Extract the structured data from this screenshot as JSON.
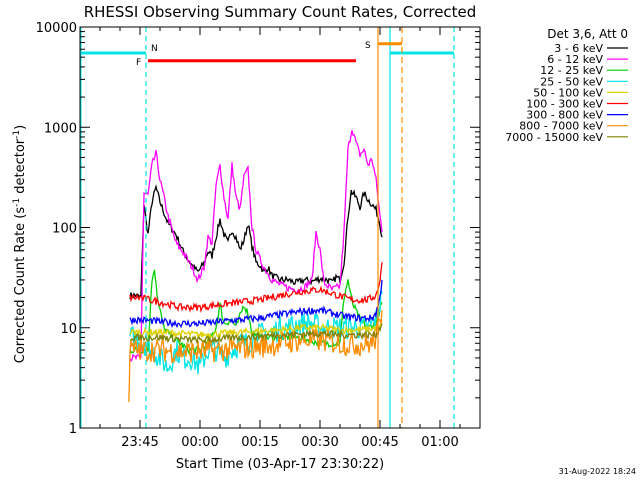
{
  "chart_data": {
    "type": "line",
    "title": "RHESSI Observing Summary Count Rates, Corrected",
    "xlabel": "Start Time (03-Apr-17 23:30:22)",
    "ylabel": "Corrected Count Rate (s",
    "ylabel_sup": "-1",
    "ylabel_mid": " detector",
    "ylabel_sup2": "-1",
    "ylabel_end": ")",
    "yscale": "log",
    "ylim": [
      1,
      10000
    ],
    "y_ticks": [
      {
        "v": 1,
        "label": "1"
      },
      {
        "v": 10,
        "label": "10"
      },
      {
        "v": 100,
        "label": "100"
      },
      {
        "v": 1000,
        "label": "1000"
      },
      {
        "v": 10000,
        "label": "10000"
      }
    ],
    "xlim_minutes": [
      0,
      100
    ],
    "x_ticks": [
      {
        "m": 15,
        "label": "23:45"
      },
      {
        "m": 30,
        "label": "00:00"
      },
      {
        "m": 45,
        "label": "00:15"
      },
      {
        "m": 60,
        "label": "00:30"
      },
      {
        "m": 75,
        "label": "00:45"
      },
      {
        "m": 90,
        "label": "01:00"
      }
    ],
    "legend_title": "Det 3,6, Att 0",
    "legend_placement": "top-right outside",
    "series": [
      {
        "name": "3 - 6 keV",
        "color": "#000000",
        "points": [
          [
            12.5,
            21
          ],
          [
            14,
            21
          ],
          [
            15.2,
            20
          ],
          [
            16,
            170
          ],
          [
            17,
            85
          ],
          [
            18,
            180
          ],
          [
            19,
            250
          ],
          [
            20,
            180
          ],
          [
            22,
            110
          ],
          [
            24,
            85
          ],
          [
            26,
            55
          ],
          [
            28,
            42
          ],
          [
            29.5,
            36
          ],
          [
            31,
            44
          ],
          [
            32,
            58
          ],
          [
            33,
            52
          ],
          [
            34,
            80
          ],
          [
            35,
            120
          ],
          [
            36,
            85
          ],
          [
            37,
            70
          ],
          [
            38,
            95
          ],
          [
            39,
            80
          ],
          [
            40,
            60
          ],
          [
            41,
            75
          ],
          [
            42,
            110
          ],
          [
            43,
            65
          ],
          [
            44,
            45
          ],
          [
            45,
            42
          ],
          [
            46,
            36
          ],
          [
            47,
            40
          ],
          [
            48,
            33
          ],
          [
            50,
            30
          ],
          [
            52,
            30
          ],
          [
            54,
            28
          ],
          [
            56,
            30
          ],
          [
            58,
            29
          ],
          [
            60,
            31
          ],
          [
            62,
            30
          ],
          [
            63,
            28
          ],
          [
            64,
            32
          ],
          [
            65,
            30
          ],
          [
            66,
            45
          ],
          [
            67,
            130
          ],
          [
            67.8,
            230
          ],
          [
            69,
            200
          ],
          [
            70,
            160
          ],
          [
            71,
            220
          ],
          [
            72,
            190
          ],
          [
            73,
            170
          ],
          [
            74,
            150
          ],
          [
            75,
            110
          ],
          [
            75.5,
            80
          ]
        ]
      },
      {
        "name": "6 - 12 keV",
        "color": "#ff00ff",
        "points": [
          [
            12.5,
            5
          ],
          [
            14,
            5
          ],
          [
            15.2,
            5
          ],
          [
            16,
            220
          ],
          [
            17,
            210
          ],
          [
            18,
            420
          ],
          [
            19,
            550
          ],
          [
            20,
            300
          ],
          [
            21,
            200
          ],
          [
            22,
            130
          ],
          [
            24,
            70
          ],
          [
            26,
            55
          ],
          [
            28,
            40
          ],
          [
            29.5,
            30
          ],
          [
            31,
            40
          ],
          [
            32,
            80
          ],
          [
            33,
            70
          ],
          [
            34,
            260
          ],
          [
            35,
            420
          ],
          [
            36,
            200
          ],
          [
            37,
            120
          ],
          [
            38,
            420
          ],
          [
            39,
            200
          ],
          [
            40,
            150
          ],
          [
            41,
            320
          ],
          [
            42,
            380
          ],
          [
            43,
            100
          ],
          [
            44,
            60
          ],
          [
            45,
            48
          ],
          [
            46,
            40
          ],
          [
            48,
            30
          ],
          [
            50,
            27
          ],
          [
            52,
            25
          ],
          [
            54,
            24
          ],
          [
            56,
            25
          ],
          [
            58,
            30
          ],
          [
            59,
            90
          ],
          [
            60,
            60
          ],
          [
            61,
            28
          ],
          [
            62,
            26
          ],
          [
            63,
            24
          ],
          [
            64,
            25
          ],
          [
            65,
            26
          ],
          [
            66,
            90
          ],
          [
            67,
            600
          ],
          [
            68,
            980
          ],
          [
            69,
            700
          ],
          [
            70,
            530
          ],
          [
            71,
            600
          ],
          [
            72,
            420
          ],
          [
            73,
            480
          ],
          [
            74,
            300
          ],
          [
            75,
            130
          ],
          [
            75.5,
            90
          ]
        ]
      },
      {
        "name": "12 - 25 keV",
        "color": "#00d000",
        "points": [
          [
            12.5,
            6
          ],
          [
            14,
            6
          ],
          [
            15.5,
            6
          ],
          [
            17,
            6
          ],
          [
            18,
            30
          ],
          [
            18.6,
            40
          ],
          [
            19.5,
            18
          ],
          [
            21,
            10
          ],
          [
            23,
            8
          ],
          [
            25,
            7
          ],
          [
            27,
            6
          ],
          [
            30,
            6
          ],
          [
            32,
            7
          ],
          [
            34,
            10
          ],
          [
            35,
            17
          ],
          [
            36,
            11
          ],
          [
            38,
            12
          ],
          [
            39,
            10
          ],
          [
            41,
            17
          ],
          [
            42,
            14
          ],
          [
            43,
            9
          ],
          [
            45,
            8
          ],
          [
            50,
            8
          ],
          [
            55,
            8
          ],
          [
            60,
            7
          ],
          [
            63,
            7
          ],
          [
            65,
            7
          ],
          [
            66,
            20
          ],
          [
            67,
            30
          ],
          [
            68,
            18
          ],
          [
            70,
            12
          ],
          [
            72,
            10
          ],
          [
            74,
            11
          ],
          [
            75.5,
            18
          ]
        ]
      },
      {
        "name": "25 - 50 keV",
        "color": "#00e5e5",
        "points": [
          [
            12.5,
            8
          ],
          [
            14,
            8
          ],
          [
            16,
            7
          ],
          [
            18,
            6
          ],
          [
            20,
            5
          ],
          [
            22,
            4
          ],
          [
            24,
            6
          ],
          [
            26,
            5
          ],
          [
            28,
            5
          ],
          [
            30,
            4
          ],
          [
            32,
            6
          ],
          [
            34,
            6
          ],
          [
            36,
            5
          ],
          [
            38,
            6
          ],
          [
            40,
            7
          ],
          [
            42,
            7
          ],
          [
            44,
            8
          ],
          [
            46,
            9
          ],
          [
            48,
            9
          ],
          [
            50,
            10
          ],
          [
            52,
            10
          ],
          [
            54,
            11
          ],
          [
            56,
            11
          ],
          [
            58,
            11
          ],
          [
            60,
            10
          ],
          [
            62,
            10
          ],
          [
            64,
            10
          ],
          [
            66,
            10
          ],
          [
            68,
            10
          ],
          [
            70,
            10
          ],
          [
            72,
            10
          ],
          [
            74,
            12
          ],
          [
            75.5,
            22
          ]
        ]
      },
      {
        "name": "50 - 100 keV",
        "color": "#e0d000",
        "points": [
          [
            12.5,
            9
          ],
          [
            20,
            9
          ],
          [
            30,
            8.5
          ],
          [
            40,
            9
          ],
          [
            50,
            9.5
          ],
          [
            55,
            10
          ],
          [
            60,
            10
          ],
          [
            65,
            9.5
          ],
          [
            70,
            9.5
          ],
          [
            75,
            10
          ],
          [
            75.5,
            12
          ]
        ]
      },
      {
        "name": "100 - 300 keV",
        "color": "#ff0000",
        "points": [
          [
            12.5,
            20
          ],
          [
            15,
            20
          ],
          [
            20,
            18
          ],
          [
            25,
            16
          ],
          [
            30,
            16
          ],
          [
            35,
            17
          ],
          [
            40,
            18
          ],
          [
            45,
            19
          ],
          [
            50,
            21
          ],
          [
            55,
            23
          ],
          [
            60,
            24
          ],
          [
            63,
            22
          ],
          [
            66,
            20
          ],
          [
            68,
            19
          ],
          [
            70,
            19
          ],
          [
            72,
            19
          ],
          [
            74,
            21
          ],
          [
            75,
            30
          ],
          [
            75.5,
            45
          ]
        ]
      },
      {
        "name": "300 - 800 keV",
        "color": "#0000ff",
        "points": [
          [
            12.5,
            12
          ],
          [
            15,
            12
          ],
          [
            20,
            11.5
          ],
          [
            25,
            11
          ],
          [
            30,
            11
          ],
          [
            35,
            11.5
          ],
          [
            40,
            12
          ],
          [
            45,
            12.5
          ],
          [
            50,
            13.5
          ],
          [
            55,
            14.5
          ],
          [
            60,
            15
          ],
          [
            63,
            14
          ],
          [
            66,
            13
          ],
          [
            70,
            12.5
          ],
          [
            73,
            12.5
          ],
          [
            74,
            14
          ],
          [
            75,
            20
          ],
          [
            75.5,
            30
          ]
        ]
      },
      {
        "name": "800 - 7000 keV",
        "color": "#ff8c00",
        "points": [
          [
            12.2,
            2
          ],
          [
            12.5,
            6
          ],
          [
            15,
            6
          ],
          [
            20,
            6
          ],
          [
            25,
            5.8
          ],
          [
            30,
            5.8
          ],
          [
            35,
            6
          ],
          [
            40,
            6.2
          ],
          [
            45,
            6.5
          ],
          [
            50,
            7
          ],
          [
            55,
            7.5
          ],
          [
            60,
            7.5
          ],
          [
            65,
            7
          ],
          [
            70,
            6.8
          ],
          [
            73,
            7
          ],
          [
            74,
            8
          ],
          [
            75,
            11
          ],
          [
            75.5,
            15
          ]
        ]
      },
      {
        "name": "7000 - 15000 keV",
        "color": "#808000",
        "points": [
          [
            12.5,
            8
          ],
          [
            20,
            8
          ],
          [
            30,
            7.5
          ],
          [
            40,
            8
          ],
          [
            50,
            8.5
          ],
          [
            60,
            8.8
          ],
          [
            65,
            8.5
          ],
          [
            70,
            8.5
          ],
          [
            74,
            8.5
          ],
          [
            75.5,
            11
          ]
        ]
      }
    ],
    "annotations": {
      "N": {
        "label": "N",
        "color": "#00e5e5",
        "level": 5500,
        "segments": [
          [
            0,
            16.5
          ],
          [
            77.5,
            93.5
          ]
        ],
        "vlines": [
          16.5,
          77.5,
          93.5
        ]
      },
      "F": {
        "label": "F",
        "color": "#ff0000",
        "level": 4600,
        "segments": [
          [
            17,
            69
          ]
        ]
      },
      "S": {
        "label": "S",
        "color": "#ff8c00",
        "level": 6800,
        "segments": [
          [
            74.5,
            80.5
          ]
        ],
        "vlines_solid": [
          74.5
        ],
        "vlines_dashed": [
          80.5
        ]
      },
      "left_vline": {
        "color": "#00e5e5",
        "m": 0
      }
    },
    "footer_date": "31-Aug-2022 18:24"
  }
}
